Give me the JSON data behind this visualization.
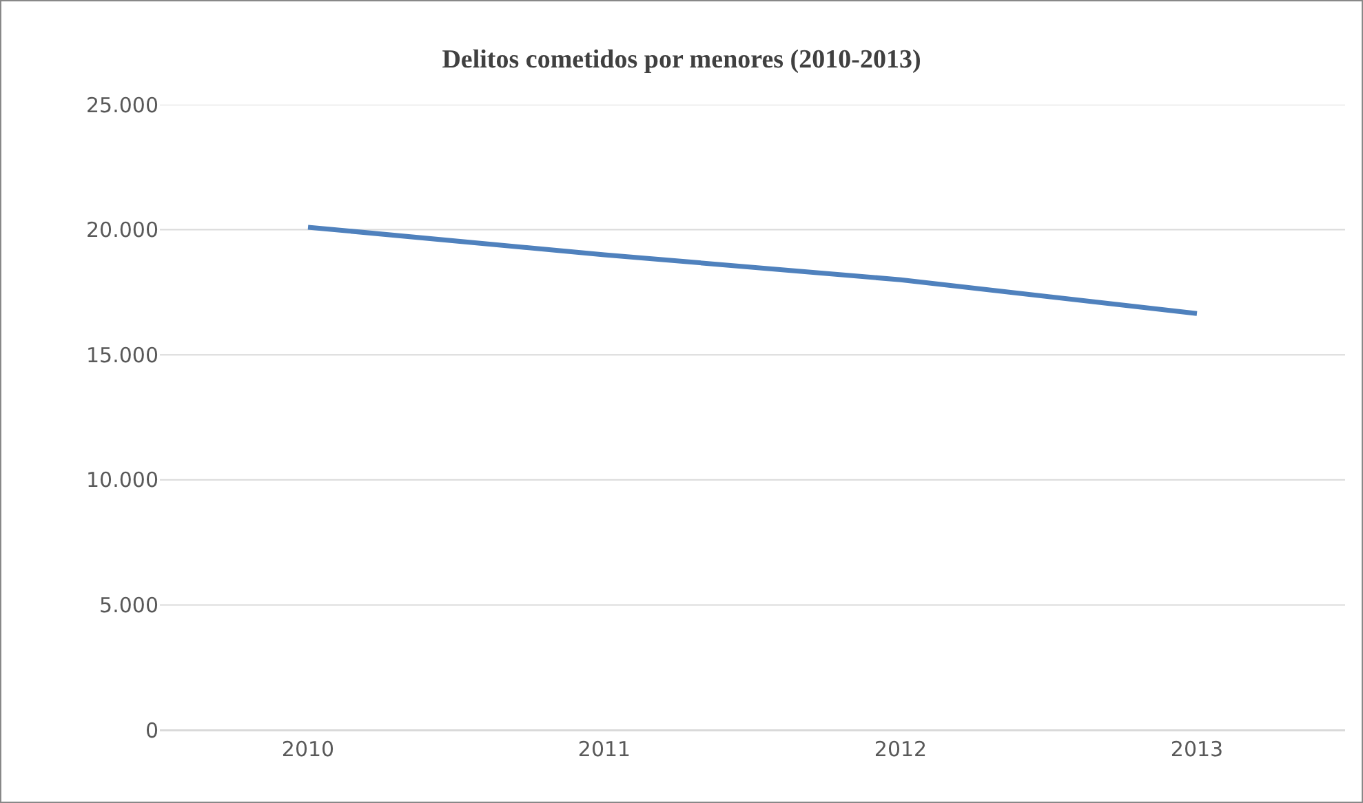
{
  "chart_data": {
    "type": "line",
    "title": "Delitos cometidos por menores (2010-2013)",
    "categories": [
      "2010",
      "2011",
      "2012",
      "2013"
    ],
    "series": [
      {
        "color": "#4f81bd",
        "values": [
          20100,
          19000,
          18000,
          16650
        ]
      }
    ],
    "ylim": [
      0,
      25000
    ],
    "yticks": [
      {
        "value": 0,
        "label": "0"
      },
      {
        "value": 5000,
        "label": "5.000"
      },
      {
        "value": 10000,
        "label": "10.000"
      },
      {
        "value": 15000,
        "label": "15.000"
      },
      {
        "value": 20000,
        "label": "20.000"
      },
      {
        "value": 25000,
        "label": "25.000"
      }
    ],
    "grid": "y",
    "marker": "none",
    "line_style": "solid"
  }
}
